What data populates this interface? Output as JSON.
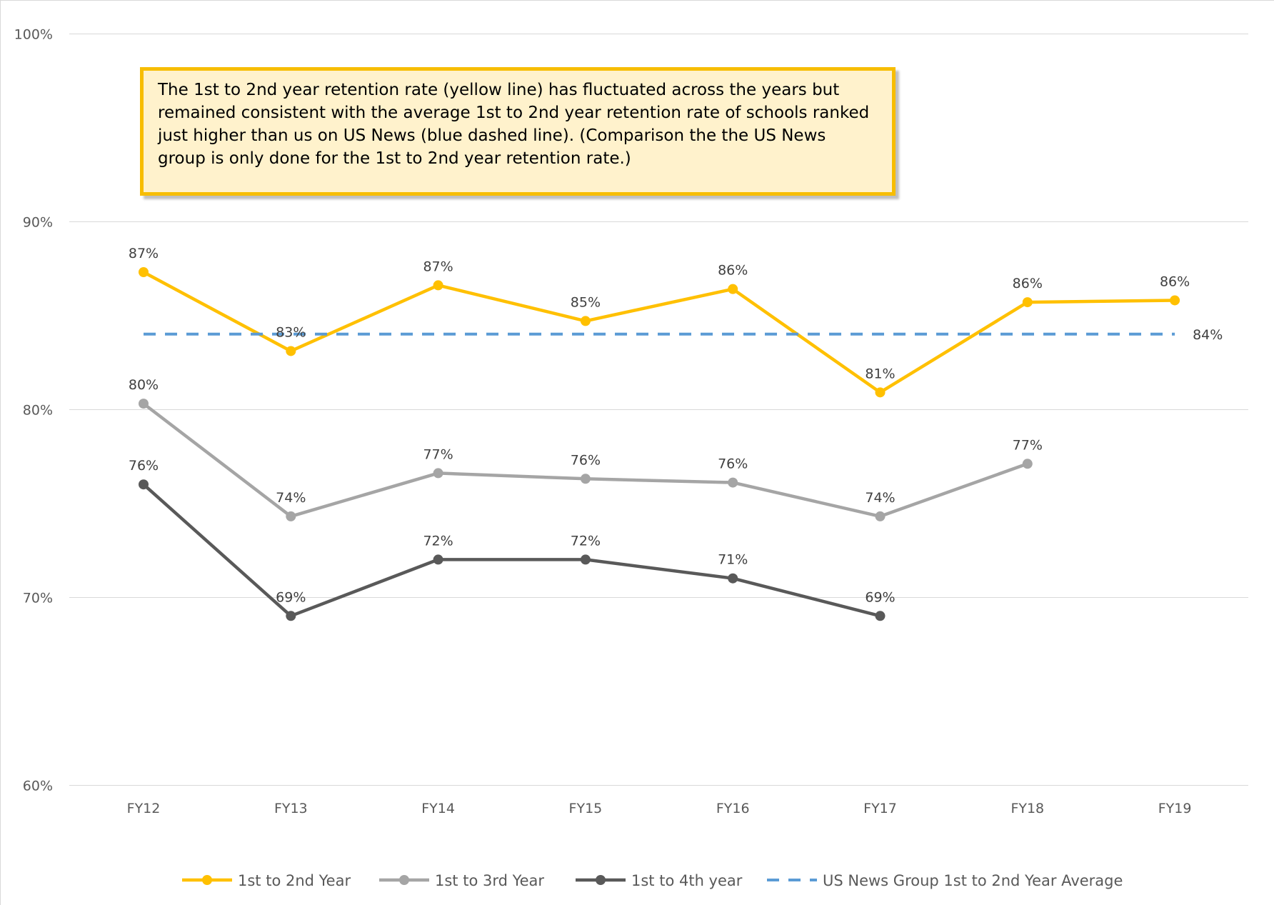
{
  "chart_data": {
    "type": "line",
    "title": "",
    "xlabel": "",
    "ylabel": "",
    "categories": [
      "FY12",
      "FY13",
      "FY14",
      "FY15",
      "FY16",
      "FY17",
      "FY18",
      "FY19"
    ],
    "ylim": [
      0.6,
      1.0
    ],
    "yticks": [
      0.6,
      0.7,
      0.8,
      0.9,
      1.0
    ],
    "ytick_labels": [
      "60%",
      "70%",
      "80%",
      "90%",
      "100%"
    ],
    "grid": true,
    "legend_position": "bottom",
    "series": [
      {
        "name": "1st to 2nd Year",
        "color": "#ffc000",
        "style": "solid-marker",
        "values": [
          0.873,
          0.831,
          0.866,
          0.847,
          0.864,
          0.809,
          0.857,
          0.858
        ],
        "labels": [
          "87%",
          "83%",
          "87%",
          "85%",
          "86%",
          "81%",
          "86%",
          "86%"
        ]
      },
      {
        "name": "1st to 3rd Year",
        "color": "#a5a5a5",
        "style": "solid-marker",
        "values": [
          0.803,
          0.743,
          0.766,
          0.763,
          0.761,
          0.743,
          0.771,
          null
        ],
        "labels": [
          "80%",
          "74%",
          "77%",
          "76%",
          "76%",
          "74%",
          "77%",
          null
        ]
      },
      {
        "name": "1st to 4th year",
        "color": "#595959",
        "style": "solid-marker",
        "values": [
          0.76,
          0.69,
          0.72,
          0.72,
          0.71,
          0.69,
          null,
          null
        ],
        "labels": [
          "76%",
          "69%",
          "72%",
          "72%",
          "71%",
          "69%",
          null,
          null
        ]
      },
      {
        "name": "US News Group 1st to 2nd Year Average",
        "color": "#5b9bd5",
        "style": "dashed",
        "values": [
          0.84,
          0.84,
          0.84,
          0.84,
          0.84,
          0.84,
          0.84,
          0.84
        ],
        "end_label": "84%"
      }
    ],
    "annotation": "The 1st to 2nd year retention rate (yellow line) has fluctuated across the years but remained consistent with the average 1st to 2nd year retention rate of schools ranked just higher than us on US News (blue dashed line). (Comparison the the US News group is only done for the 1st to 2nd year retention rate.)"
  }
}
